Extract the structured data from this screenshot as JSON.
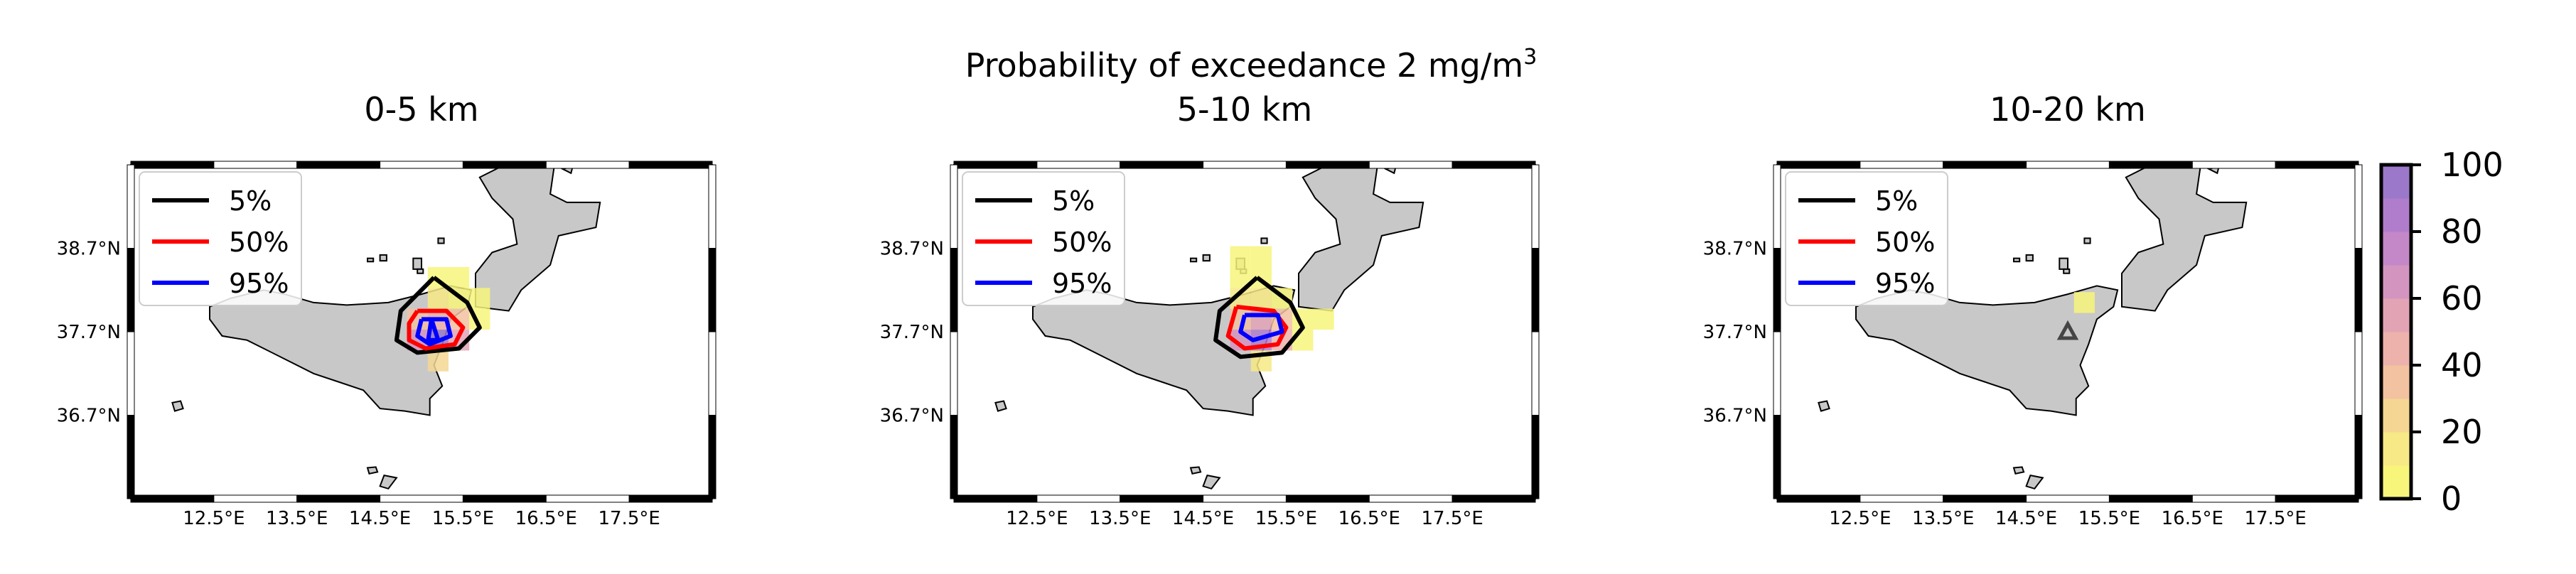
{
  "suptitle": "Probability of exceedance 2 mg/m",
  "suptitle_sup": "3",
  "legend": [
    {
      "label": "5%",
      "color": "#000000"
    },
    {
      "label": "50%",
      "color": "#ff0000"
    },
    {
      "label": "95%",
      "color": "#0000ff"
    }
  ],
  "colorbar": {
    "ticks": [
      "0",
      "20",
      "40",
      "60",
      "80",
      "100"
    ],
    "levels": [
      0,
      10,
      20,
      30,
      40,
      50,
      60,
      70,
      80,
      90,
      100
    ],
    "colors": [
      "#f7f57a",
      "#f7e985",
      "#f5d793",
      "#f2c2a1",
      "#edb2ab",
      "#e2a3b5",
      "#d394c0",
      "#c487c8",
      "#b07dcc",
      "#9b78c9"
    ]
  },
  "chart_data": [
    {
      "type": "heatmap",
      "title": "0-5 km",
      "xlabels": [
        "12.5°E",
        "13.5°E",
        "14.5°E",
        "15.5°E",
        "16.5°E",
        "17.5°E"
      ],
      "ylabels": [
        "38.7°N",
        "37.7°N",
        "36.7°N"
      ],
      "xlim": [
        11.5,
        18.5
      ],
      "ylim": [
        35.7,
        39.7
      ],
      "cells": [
        {
          "lon": 15.2,
          "lat": 38.35,
          "value": 3
        },
        {
          "lon": 15.45,
          "lat": 38.35,
          "value": 3
        },
        {
          "lon": 15.2,
          "lat": 38.1,
          "value": 10
        },
        {
          "lon": 15.45,
          "lat": 38.1,
          "value": 8
        },
        {
          "lon": 15.7,
          "lat": 38.1,
          "value": 3
        },
        {
          "lon": 14.95,
          "lat": 37.85,
          "value": 30
        },
        {
          "lon": 15.2,
          "lat": 37.85,
          "value": 45
        },
        {
          "lon": 15.45,
          "lat": 37.85,
          "value": 30
        },
        {
          "lon": 15.7,
          "lat": 37.85,
          "value": 5
        },
        {
          "lon": 14.95,
          "lat": 37.6,
          "value": 60
        },
        {
          "lon": 15.2,
          "lat": 37.6,
          "value": 90
        },
        {
          "lon": 15.45,
          "lat": 37.6,
          "value": 55
        },
        {
          "lon": 15.2,
          "lat": 37.35,
          "value": 20
        }
      ],
      "contours": [
        {
          "level": "5%",
          "color": "#000000",
          "path": [
            [
              15.15,
              38.35
            ],
            [
              15.55,
              38.05
            ],
            [
              15.7,
              37.75
            ],
            [
              15.45,
              37.5
            ],
            [
              14.95,
              37.45
            ],
            [
              14.7,
              37.6
            ],
            [
              14.75,
              37.95
            ],
            [
              15.15,
              38.35
            ]
          ]
        },
        {
          "level": "50%",
          "color": "#ff0000",
          "path": [
            [
              14.95,
              37.95
            ],
            [
              15.3,
              37.95
            ],
            [
              15.5,
              37.75
            ],
            [
              15.4,
              37.55
            ],
            [
              15.05,
              37.5
            ],
            [
              14.85,
              37.6
            ],
            [
              14.85,
              37.8
            ],
            [
              14.95,
              37.95
            ]
          ]
        },
        {
          "level": "95%",
          "color": "#0000ff",
          "path": [
            [
              15.0,
              37.85
            ],
            [
              15.3,
              37.85
            ],
            [
              15.35,
              37.65
            ],
            [
              15.1,
              37.55
            ],
            [
              14.95,
              37.65
            ],
            [
              15.0,
              37.85
            ]
          ]
        },
        {
          "level": "95%",
          "color": "#0000ff",
          "path": [
            [
              15.12,
              37.85
            ],
            [
              15.2,
              37.6
            ],
            [
              15.08,
              37.6
            ],
            [
              15.12,
              37.85
            ]
          ]
        }
      ],
      "marker": null
    },
    {
      "type": "heatmap",
      "title": "5-10 km",
      "xlabels": [
        "12.5°E",
        "13.5°E",
        "14.5°E",
        "15.5°E",
        "16.5°E",
        "17.5°E"
      ],
      "ylabels": [
        "38.7°N",
        "37.7°N",
        "36.7°N"
      ],
      "xlim": [
        11.5,
        18.5
      ],
      "ylim": [
        35.7,
        39.7
      ],
      "cells": [
        {
          "lon": 14.95,
          "lat": 38.6,
          "value": 3
        },
        {
          "lon": 15.2,
          "lat": 38.6,
          "value": 3
        },
        {
          "lon": 14.95,
          "lat": 38.35,
          "value": 3
        },
        {
          "lon": 15.2,
          "lat": 38.35,
          "value": 5
        },
        {
          "lon": 14.95,
          "lat": 38.1,
          "value": 10
        },
        {
          "lon": 15.2,
          "lat": 38.1,
          "value": 15
        },
        {
          "lon": 15.45,
          "lat": 38.1,
          "value": 5
        },
        {
          "lon": 14.95,
          "lat": 37.85,
          "value": 35
        },
        {
          "lon": 15.2,
          "lat": 37.85,
          "value": 50
        },
        {
          "lon": 15.45,
          "lat": 37.85,
          "value": 30
        },
        {
          "lon": 15.7,
          "lat": 37.85,
          "value": 8
        },
        {
          "lon": 15.95,
          "lat": 37.85,
          "value": 3
        },
        {
          "lon": 14.95,
          "lat": 37.6,
          "value": 60
        },
        {
          "lon": 15.2,
          "lat": 37.6,
          "value": 85
        },
        {
          "lon": 15.45,
          "lat": 37.6,
          "value": 40
        },
        {
          "lon": 15.7,
          "lat": 37.6,
          "value": 5
        },
        {
          "lon": 15.2,
          "lat": 37.35,
          "value": 15
        }
      ],
      "contours": [
        {
          "level": "5%",
          "color": "#000000",
          "path": [
            [
              15.15,
              38.35
            ],
            [
              15.55,
              38.05
            ],
            [
              15.7,
              37.75
            ],
            [
              15.45,
              37.45
            ],
            [
              14.95,
              37.4
            ],
            [
              14.65,
              37.6
            ],
            [
              14.7,
              37.95
            ],
            [
              15.15,
              38.35
            ]
          ]
        },
        {
          "level": "50%",
          "color": "#ff0000",
          "path": [
            [
              14.9,
              38.0
            ],
            [
              15.35,
              37.95
            ],
            [
              15.5,
              37.75
            ],
            [
              15.4,
              37.55
            ],
            [
              15.0,
              37.5
            ],
            [
              14.8,
              37.65
            ],
            [
              14.9,
              38.0
            ]
          ]
        },
        {
          "level": "95%",
          "color": "#0000ff",
          "path": [
            [
              15.0,
              37.9
            ],
            [
              15.4,
              37.9
            ],
            [
              15.45,
              37.7
            ],
            [
              15.1,
              37.6
            ],
            [
              14.95,
              37.7
            ],
            [
              15.0,
              37.9
            ]
          ]
        }
      ],
      "marker": null
    },
    {
      "type": "heatmap",
      "title": "10-20 km",
      "xlabels": [
        "12.5°E",
        "13.5°E",
        "14.5°E",
        "15.5°E",
        "16.5°E",
        "17.5°E"
      ],
      "ylabels": [
        "38.7°N",
        "37.7°N",
        "36.7°N"
      ],
      "xlim": [
        11.5,
        18.5
      ],
      "ylim": [
        35.7,
        39.7
      ],
      "cells": [
        {
          "lon": 15.2,
          "lat": 38.05,
          "value": 3
        }
      ],
      "contours": [],
      "marker": {
        "lon": 15.0,
        "lat": 37.7
      }
    }
  ]
}
